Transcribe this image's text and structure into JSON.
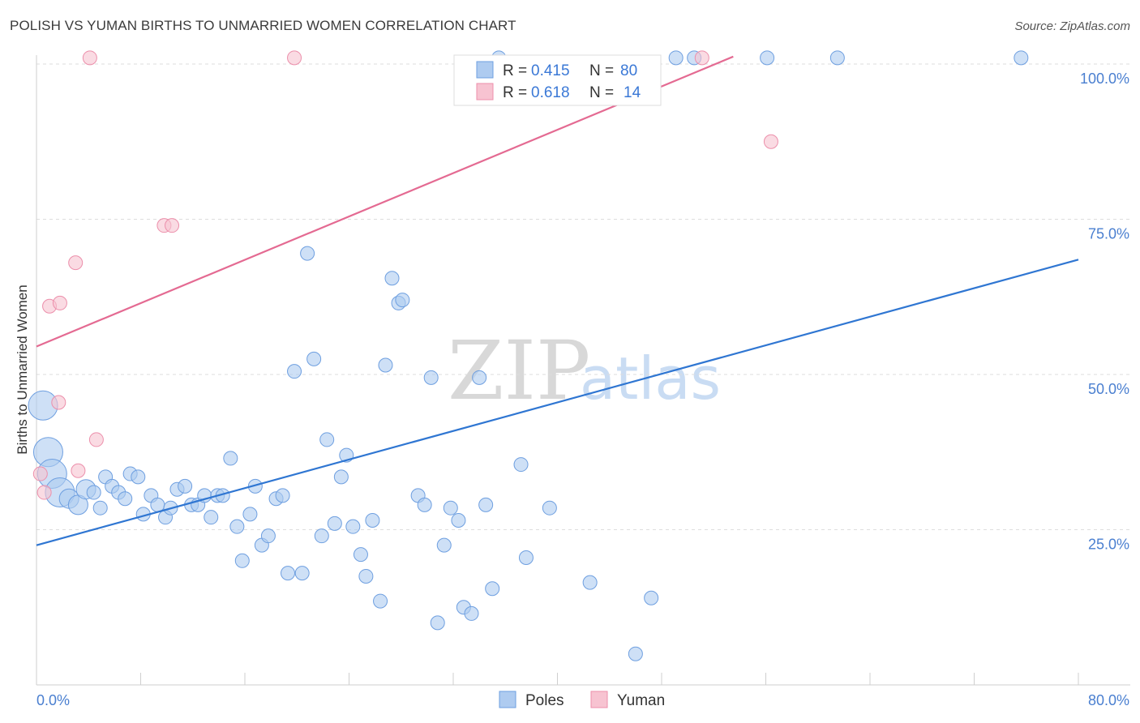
{
  "title": "POLISH VS YUMAN BIRTHS TO UNMARRIED WOMEN CORRELATION CHART",
  "source": "Source: ZipAtlas.com",
  "watermark": {
    "zip": "ZIP",
    "atlas": "atlas"
  },
  "colors": {
    "poles_fill": "#aecbf0",
    "poles_stroke": "#6e9fe0",
    "poles_line": "#2f76d2",
    "yuman_fill": "#f7c3d1",
    "yuman_stroke": "#ec8fab",
    "yuman_line": "#e46a92",
    "tick_label": "#4a7fd0",
    "grid": "#dddddd"
  },
  "legend_top": {
    "rows": [
      {
        "series": "Poles",
        "r_label": "R =",
        "r_value": "0.415",
        "n_label": "N =",
        "n_value": "80"
      },
      {
        "series": "Yuman",
        "r_label": "R =",
        "r_value": "0.618",
        "n_label": "N =",
        "n_value": "14"
      }
    ]
  },
  "legend_bottom": [
    "Poles",
    "Yuman"
  ],
  "chart_data": {
    "type": "scatter",
    "title": "POLISH VS YUMAN BIRTHS TO UNMARRIED WOMEN CORRELATION CHART",
    "xlabel": "",
    "ylabel": "Births to Unmarried Women",
    "xlim": [
      0,
      80
    ],
    "ylim": [
      0,
      102
    ],
    "x_tick_labels": [
      {
        "value": 0,
        "label": "0.0%"
      },
      {
        "value": 80,
        "label": "80.0%"
      }
    ],
    "y_tick_labels": [
      {
        "value": 25,
        "label": "25.0%"
      },
      {
        "value": 50,
        "label": "50.0%"
      },
      {
        "value": 75,
        "label": "75.0%"
      },
      {
        "value": 100,
        "label": "100.0%"
      }
    ],
    "grid": true,
    "series": [
      {
        "name": "Poles",
        "r": 0.415,
        "n": 80,
        "trendline": {
          "x": [
            0,
            80
          ],
          "y": [
            22.5,
            68.5
          ]
        },
        "points": [
          {
            "x": 0.5,
            "y": 45,
            "s": 3
          },
          {
            "x": 0.9,
            "y": 37.5,
            "s": 3
          },
          {
            "x": 1.2,
            "y": 34,
            "s": 3
          },
          {
            "x": 1.8,
            "y": 31,
            "s": 3
          },
          {
            "x": 2.5,
            "y": 30,
            "s": 2
          },
          {
            "x": 3.2,
            "y": 29,
            "s": 2
          },
          {
            "x": 3.8,
            "y": 31.5,
            "s": 2
          },
          {
            "x": 4.4,
            "y": 31,
            "s": 1
          },
          {
            "x": 4.9,
            "y": 28.5,
            "s": 1
          },
          {
            "x": 5.3,
            "y": 33.5,
            "s": 1
          },
          {
            "x": 5.8,
            "y": 32,
            "s": 1
          },
          {
            "x": 6.3,
            "y": 31,
            "s": 1
          },
          {
            "x": 6.8,
            "y": 30,
            "s": 1
          },
          {
            "x": 7.2,
            "y": 34,
            "s": 1
          },
          {
            "x": 7.8,
            "y": 33.5,
            "s": 1
          },
          {
            "x": 8.2,
            "y": 27.5,
            "s": 1
          },
          {
            "x": 8.8,
            "y": 30.5,
            "s": 1
          },
          {
            "x": 9.3,
            "y": 29,
            "s": 1
          },
          {
            "x": 9.9,
            "y": 27,
            "s": 1
          },
          {
            "x": 10.3,
            "y": 28.5,
            "s": 1
          },
          {
            "x": 10.8,
            "y": 31.5,
            "s": 1
          },
          {
            "x": 11.4,
            "y": 32,
            "s": 1
          },
          {
            "x": 11.9,
            "y": 29,
            "s": 1
          },
          {
            "x": 12.4,
            "y": 29,
            "s": 1
          },
          {
            "x": 12.9,
            "y": 30.5,
            "s": 1
          },
          {
            "x": 13.4,
            "y": 27,
            "s": 1
          },
          {
            "x": 13.9,
            "y": 30.5,
            "s": 1
          },
          {
            "x": 14.3,
            "y": 30.5,
            "s": 1
          },
          {
            "x": 14.9,
            "y": 36.5,
            "s": 1
          },
          {
            "x": 15.4,
            "y": 25.5,
            "s": 1
          },
          {
            "x": 15.8,
            "y": 20,
            "s": 1
          },
          {
            "x": 16.4,
            "y": 27.5,
            "s": 1
          },
          {
            "x": 16.8,
            "y": 32,
            "s": 1
          },
          {
            "x": 17.3,
            "y": 22.5,
            "s": 1
          },
          {
            "x": 17.8,
            "y": 24,
            "s": 1
          },
          {
            "x": 18.4,
            "y": 30,
            "s": 1
          },
          {
            "x": 18.9,
            "y": 30.5,
            "s": 1
          },
          {
            "x": 19.3,
            "y": 18,
            "s": 1
          },
          {
            "x": 19.8,
            "y": 50.5,
            "s": 1
          },
          {
            "x": 20.4,
            "y": 18,
            "s": 1
          },
          {
            "x": 20.8,
            "y": 69.5,
            "s": 1
          },
          {
            "x": 21.3,
            "y": 52.5,
            "s": 1
          },
          {
            "x": 21.9,
            "y": 24,
            "s": 1
          },
          {
            "x": 22.3,
            "y": 39.5,
            "s": 1
          },
          {
            "x": 22.9,
            "y": 26,
            "s": 1
          },
          {
            "x": 23.4,
            "y": 33.5,
            "s": 1
          },
          {
            "x": 23.8,
            "y": 37,
            "s": 1
          },
          {
            "x": 24.3,
            "y": 25.5,
            "s": 1
          },
          {
            "x": 24.9,
            "y": 21,
            "s": 1
          },
          {
            "x": 25.3,
            "y": 17.5,
            "s": 1
          },
          {
            "x": 25.8,
            "y": 26.5,
            "s": 1
          },
          {
            "x": 26.4,
            "y": 13.5,
            "s": 1
          },
          {
            "x": 26.8,
            "y": 51.5,
            "s": 1
          },
          {
            "x": 27.3,
            "y": 65.5,
            "s": 1
          },
          {
            "x": 27.8,
            "y": 61.5,
            "s": 1
          },
          {
            "x": 28.1,
            "y": 62,
            "s": 1
          },
          {
            "x": 29.3,
            "y": 30.5,
            "s": 1
          },
          {
            "x": 29.8,
            "y": 29,
            "s": 1
          },
          {
            "x": 30.3,
            "y": 49.5,
            "s": 1
          },
          {
            "x": 30.8,
            "y": 10,
            "s": 1
          },
          {
            "x": 31.3,
            "y": 22.5,
            "s": 1
          },
          {
            "x": 31.8,
            "y": 28.5,
            "s": 1
          },
          {
            "x": 32.4,
            "y": 26.5,
            "s": 1
          },
          {
            "x": 32.8,
            "y": 12.5,
            "s": 1
          },
          {
            "x": 33.4,
            "y": 11.5,
            "s": 1
          },
          {
            "x": 34.0,
            "y": 49.5,
            "s": 1
          },
          {
            "x": 34.5,
            "y": 29,
            "s": 1
          },
          {
            "x": 35.0,
            "y": 15.5,
            "s": 1
          },
          {
            "x": 35.5,
            "y": 101,
            "s": 1
          },
          {
            "x": 37.2,
            "y": 35.5,
            "s": 1
          },
          {
            "x": 37.6,
            "y": 20.5,
            "s": 1
          },
          {
            "x": 39.4,
            "y": 28.5,
            "s": 1
          },
          {
            "x": 42.5,
            "y": 16.5,
            "s": 1
          },
          {
            "x": 46.0,
            "y": 5,
            "s": 1
          },
          {
            "x": 47.2,
            "y": 14,
            "s": 1
          },
          {
            "x": 49.1,
            "y": 101,
            "s": 1
          },
          {
            "x": 56.1,
            "y": 101,
            "s": 1
          },
          {
            "x": 61.5,
            "y": 101,
            "s": 1
          },
          {
            "x": 75.6,
            "y": 101,
            "s": 1
          },
          {
            "x": 50.5,
            "y": 101,
            "s": 1
          }
        ]
      },
      {
        "name": "Yuman",
        "r": 0.618,
        "n": 14,
        "trendline": {
          "x": [
            0,
            53.5
          ],
          "y": 54.5,
          "y_end": 101.2
        },
        "points": [
          {
            "x": 0.3,
            "y": 34,
            "s": 1
          },
          {
            "x": 0.6,
            "y": 31,
            "s": 1
          },
          {
            "x": 1.0,
            "y": 61,
            "s": 1
          },
          {
            "x": 1.8,
            "y": 61.5,
            "s": 1
          },
          {
            "x": 1.7,
            "y": 45.5,
            "s": 1
          },
          {
            "x": 3.0,
            "y": 68,
            "s": 1
          },
          {
            "x": 3.2,
            "y": 34.5,
            "s": 1
          },
          {
            "x": 4.6,
            "y": 39.5,
            "s": 1
          },
          {
            "x": 4.1,
            "y": 101,
            "s": 1
          },
          {
            "x": 9.8,
            "y": 74,
            "s": 1
          },
          {
            "x": 10.4,
            "y": 74,
            "s": 1
          },
          {
            "x": 19.8,
            "y": 101,
            "s": 1
          },
          {
            "x": 51.1,
            "y": 101,
            "s": 1
          },
          {
            "x": 56.4,
            "y": 87.5,
            "s": 1
          }
        ]
      }
    ]
  }
}
